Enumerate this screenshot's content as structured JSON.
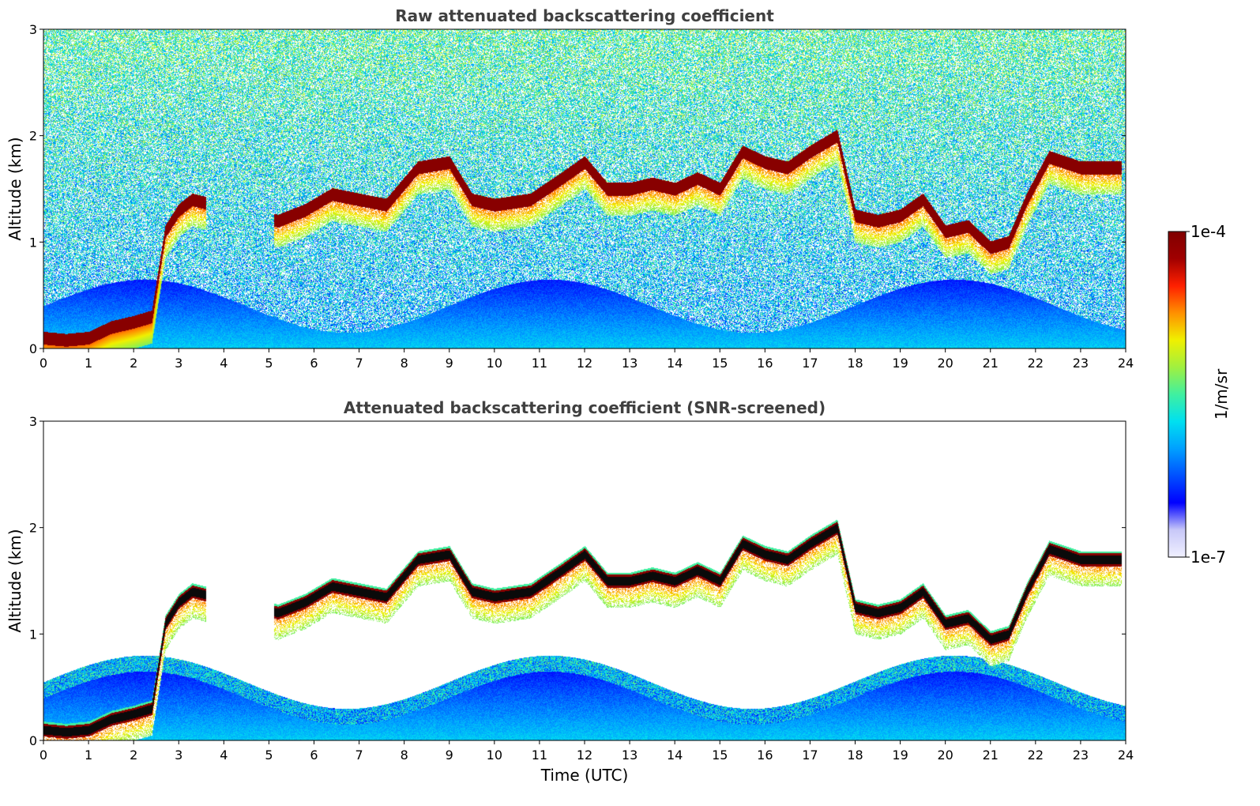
{
  "colormap": [
    "#f0f0ff",
    "#c8c8f8",
    "#0000ff",
    "#0050ff",
    "#00a0ff",
    "#00e0f0",
    "#40f0a0",
    "#a0f040",
    "#f0f000",
    "#ff9000",
    "#ff2000",
    "#a00000",
    "#800000"
  ],
  "colorbar": {
    "max_label": "1e-4",
    "min_label": "1e-7",
    "unit_label": "1/m/sr"
  },
  "chart_data": [
    {
      "type": "heatmap",
      "title": "Raw attenuated backscattering coefficient",
      "xlabel": "",
      "ylabel": "Altitude (km)",
      "xlim": [
        0,
        24
      ],
      "ylim": [
        0,
        3
      ],
      "x_ticks": [
        "0",
        "1",
        "2",
        "3",
        "4",
        "5",
        "6",
        "7",
        "8",
        "9",
        "10",
        "11",
        "12",
        "13",
        "14",
        "15",
        "16",
        "17",
        "18",
        "19",
        "20",
        "21",
        "22",
        "23",
        "24"
      ],
      "y_ticks": [
        "0",
        "1",
        "2",
        "3"
      ],
      "value_scale": "log",
      "value_range": [
        "1e-7",
        "1e-4"
      ],
      "screened": false,
      "cloud_layer_km": [
        [
          0.0,
          0.1
        ],
        [
          0.5,
          0.08
        ],
        [
          1.0,
          0.1
        ],
        [
          1.5,
          0.2
        ],
        [
          2.0,
          0.25
        ],
        [
          2.4,
          0.3
        ],
        [
          2.7,
          1.1
        ],
        [
          3.0,
          1.3
        ],
        [
          3.3,
          1.4
        ],
        [
          5.2,
          1.2
        ],
        [
          5.8,
          1.3
        ],
        [
          6.4,
          1.45
        ],
        [
          7.0,
          1.4
        ],
        [
          7.6,
          1.35
        ],
        [
          8.3,
          1.7
        ],
        [
          9.0,
          1.75
        ],
        [
          9.5,
          1.4
        ],
        [
          10.0,
          1.35
        ],
        [
          10.8,
          1.4
        ],
        [
          11.5,
          1.6
        ],
        [
          12.0,
          1.75
        ],
        [
          12.5,
          1.5
        ],
        [
          13.0,
          1.5
        ],
        [
          13.5,
          1.55
        ],
        [
          14.0,
          1.5
        ],
        [
          14.5,
          1.6
        ],
        [
          15.0,
          1.5
        ],
        [
          15.5,
          1.85
        ],
        [
          16.0,
          1.75
        ],
        [
          16.5,
          1.7
        ],
        [
          17.0,
          1.85
        ],
        [
          17.6,
          2.0
        ],
        [
          18.0,
          1.25
        ],
        [
          18.5,
          1.2
        ],
        [
          19.0,
          1.25
        ],
        [
          19.5,
          1.4
        ],
        [
          20.0,
          1.1
        ],
        [
          20.5,
          1.15
        ],
        [
          21.0,
          0.95
        ],
        [
          21.4,
          1.0
        ],
        [
          21.8,
          1.4
        ],
        [
          22.3,
          1.8
        ],
        [
          23.0,
          1.7
        ],
        [
          23.9,
          1.7
        ]
      ]
    },
    {
      "type": "heatmap",
      "title": "Attenuated backscattering coefficient (SNR-screened)",
      "xlabel": "Time (UTC)",
      "ylabel": "Altitude (km)",
      "xlim": [
        0,
        24
      ],
      "ylim": [
        0,
        3
      ],
      "x_ticks": [
        "0",
        "1",
        "2",
        "3",
        "4",
        "5",
        "6",
        "7",
        "8",
        "9",
        "10",
        "11",
        "12",
        "13",
        "14",
        "15",
        "16",
        "17",
        "18",
        "19",
        "20",
        "21",
        "22",
        "23",
        "24"
      ],
      "y_ticks": [
        "0",
        "1",
        "2",
        "3"
      ],
      "value_scale": "log",
      "value_range": [
        "1e-7",
        "1e-4"
      ],
      "screened": true,
      "cloud_layer_km": [
        [
          0.0,
          0.1
        ],
        [
          0.5,
          0.08
        ],
        [
          1.0,
          0.1
        ],
        [
          1.5,
          0.2
        ],
        [
          2.0,
          0.25
        ],
        [
          2.4,
          0.3
        ],
        [
          2.7,
          1.1
        ],
        [
          3.0,
          1.3
        ],
        [
          3.3,
          1.4
        ],
        [
          5.2,
          1.2
        ],
        [
          5.8,
          1.3
        ],
        [
          6.4,
          1.45
        ],
        [
          7.0,
          1.4
        ],
        [
          7.6,
          1.35
        ],
        [
          8.3,
          1.7
        ],
        [
          9.0,
          1.75
        ],
        [
          9.5,
          1.4
        ],
        [
          10.0,
          1.35
        ],
        [
          10.8,
          1.4
        ],
        [
          11.5,
          1.6
        ],
        [
          12.0,
          1.75
        ],
        [
          12.5,
          1.5
        ],
        [
          13.0,
          1.5
        ],
        [
          13.5,
          1.55
        ],
        [
          14.0,
          1.5
        ],
        [
          14.5,
          1.6
        ],
        [
          15.0,
          1.5
        ],
        [
          15.5,
          1.85
        ],
        [
          16.0,
          1.75
        ],
        [
          16.5,
          1.7
        ],
        [
          17.0,
          1.85
        ],
        [
          17.6,
          2.0
        ],
        [
          18.0,
          1.25
        ],
        [
          18.5,
          1.2
        ],
        [
          19.0,
          1.25
        ],
        [
          19.5,
          1.4
        ],
        [
          20.0,
          1.1
        ],
        [
          20.5,
          1.15
        ],
        [
          21.0,
          0.95
        ],
        [
          21.4,
          1.0
        ],
        [
          21.8,
          1.4
        ],
        [
          22.3,
          1.8
        ],
        [
          23.0,
          1.7
        ],
        [
          23.9,
          1.7
        ]
      ]
    }
  ]
}
